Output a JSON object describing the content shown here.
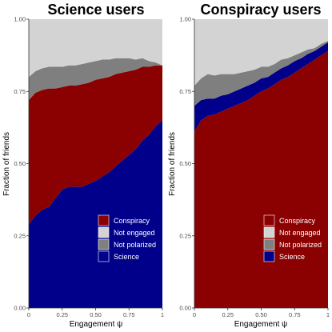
{
  "chart_data": [
    {
      "type": "area",
      "stacked": true,
      "title": "Science users",
      "xlabel": "Engagement ψ",
      "ylabel": "Fraction of friends",
      "xlim": [
        0,
        1
      ],
      "ylim": [
        0,
        1
      ],
      "x_ticks": [
        "0",
        "0.25",
        "0.50",
        "0.75",
        "1"
      ],
      "y_ticks": [
        "0.00",
        "0.25",
        "0.50",
        "0.75",
        "1.00"
      ],
      "x": [
        0,
        0.05,
        0.1,
        0.15,
        0.2,
        0.25,
        0.3,
        0.35,
        0.4,
        0.45,
        0.5,
        0.55,
        0.6,
        0.65,
        0.7,
        0.75,
        0.8,
        0.85,
        0.9,
        0.95,
        1.0
      ],
      "series": [
        {
          "name": "Science",
          "color": "#00008b",
          "values": [
            0.29,
            0.32,
            0.34,
            0.35,
            0.38,
            0.41,
            0.42,
            0.42,
            0.42,
            0.43,
            0.44,
            0.455,
            0.47,
            0.49,
            0.51,
            0.53,
            0.55,
            0.58,
            0.6,
            0.63,
            0.65
          ]
        },
        {
          "name": "Conspiracy",
          "color": "#8b0000",
          "values": [
            0.43,
            0.425,
            0.415,
            0.41,
            0.38,
            0.355,
            0.35,
            0.35,
            0.355,
            0.35,
            0.35,
            0.34,
            0.33,
            0.32,
            0.305,
            0.29,
            0.275,
            0.255,
            0.235,
            0.21,
            0.19
          ]
        },
        {
          "name": "Not polarized",
          "color": "#7f7f7f",
          "values": [
            0.08,
            0.075,
            0.075,
            0.075,
            0.075,
            0.07,
            0.07,
            0.07,
            0.07,
            0.07,
            0.065,
            0.065,
            0.06,
            0.055,
            0.05,
            0.045,
            0.035,
            0.03,
            0.02,
            0.01,
            0.0
          ]
        },
        {
          "name": "Not engaged",
          "color": "#d3d3d3",
          "values": [
            0.2,
            0.18,
            0.17,
            0.165,
            0.165,
            0.165,
            0.16,
            0.16,
            0.155,
            0.15,
            0.145,
            0.14,
            0.14,
            0.135,
            0.135,
            0.135,
            0.14,
            0.135,
            0.145,
            0.15,
            0.16
          ]
        }
      ],
      "legend": {
        "placement": "bottom-right",
        "entries": [
          "Conspiracy",
          "Not engaged",
          "Not polarized",
          "Science"
        ]
      }
    },
    {
      "type": "area",
      "stacked": true,
      "title": "Conspiracy users",
      "xlabel": "Engagement ψ",
      "ylabel": "Fraction of friends",
      "xlim": [
        0,
        1
      ],
      "ylim": [
        0,
        1
      ],
      "x_ticks": [
        "0",
        "0.25",
        "0.50",
        "0.75",
        "1"
      ],
      "y_ticks": [
        "0.00",
        "0.25",
        "0.50",
        "0.75",
        "1.00"
      ],
      "x": [
        0,
        0.05,
        0.1,
        0.15,
        0.2,
        0.25,
        0.3,
        0.35,
        0.4,
        0.45,
        0.5,
        0.55,
        0.6,
        0.65,
        0.7,
        0.75,
        0.8,
        0.85,
        0.9,
        0.95,
        1.0
      ],
      "series": [
        {
          "name": "Conspiracy",
          "color": "#8b0000",
          "values": [
            0.61,
            0.65,
            0.665,
            0.67,
            0.68,
            0.69,
            0.7,
            0.71,
            0.72,
            0.735,
            0.75,
            0.76,
            0.775,
            0.79,
            0.8,
            0.815,
            0.83,
            0.845,
            0.86,
            0.875,
            0.89
          ]
        },
        {
          "name": "Science",
          "color": "#00008b",
          "values": [
            0.09,
            0.07,
            0.06,
            0.055,
            0.055,
            0.05,
            0.05,
            0.05,
            0.05,
            0.045,
            0.045,
            0.04,
            0.04,
            0.04,
            0.04,
            0.04,
            0.035,
            0.035,
            0.03,
            0.03,
            0.03
          ]
        },
        {
          "name": "Not polarized",
          "color": "#7f7f7f",
          "values": [
            0.07,
            0.075,
            0.085,
            0.08,
            0.075,
            0.07,
            0.06,
            0.055,
            0.05,
            0.045,
            0.04,
            0.035,
            0.03,
            0.03,
            0.025,
            0.02,
            0.02,
            0.015,
            0.01,
            0.01,
            0.005
          ]
        },
        {
          "name": "Not engaged",
          "color": "#d3d3d3",
          "values": [
            0.23,
            0.205,
            0.19,
            0.195,
            0.19,
            0.19,
            0.19,
            0.185,
            0.18,
            0.175,
            0.165,
            0.165,
            0.155,
            0.14,
            0.135,
            0.125,
            0.115,
            0.105,
            0.1,
            0.085,
            0.075
          ]
        }
      ],
      "legend": {
        "placement": "bottom-right",
        "entries": [
          "Conspiracy",
          "Not engaged",
          "Not polarized",
          "Science"
        ]
      }
    }
  ]
}
